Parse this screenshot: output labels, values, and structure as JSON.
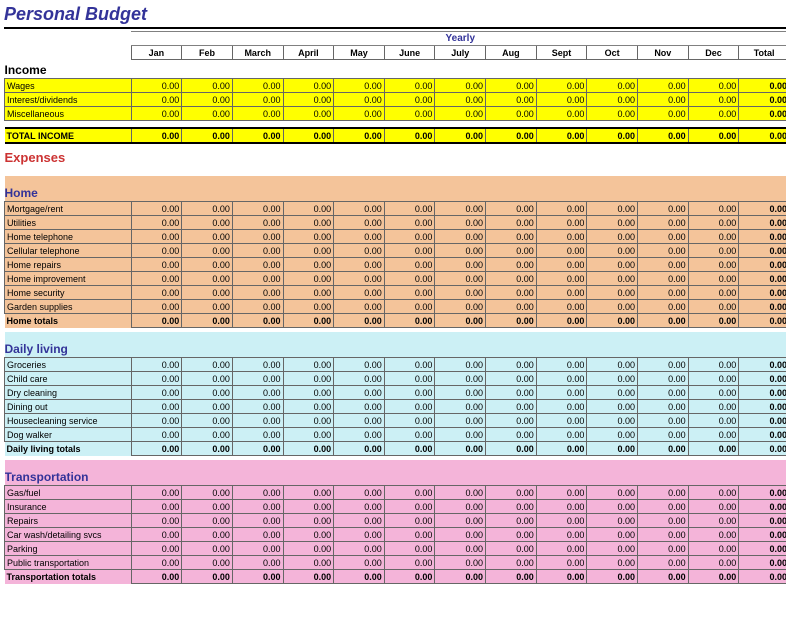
{
  "title": "Personal Budget",
  "headers": {
    "yearly": "Yearly",
    "months": [
      "Jan",
      "Feb",
      "March",
      "April",
      "May",
      "June",
      "July",
      "Aug",
      "Sept",
      "Oct",
      "Nov",
      "Dec"
    ],
    "total": "Total"
  },
  "colors": {
    "title": "#333399",
    "expenses_header": "#cc3333",
    "subsection_header": "#333399",
    "bg_yellow": "#ffff00",
    "bg_peach": "#f4c49a",
    "bg_lightblue": "#ccf0f5",
    "bg_pink": "#f4b4d9",
    "border": "#666666"
  },
  "income": {
    "header": "Income",
    "rows": [
      {
        "label": "Wages",
        "values": [
          "0.00",
          "0.00",
          "0.00",
          "0.00",
          "0.00",
          "0.00",
          "0.00",
          "0.00",
          "0.00",
          "0.00",
          "0.00",
          "0.00"
        ],
        "total": "0.00"
      },
      {
        "label": "Interest/dividends",
        "values": [
          "0.00",
          "0.00",
          "0.00",
          "0.00",
          "0.00",
          "0.00",
          "0.00",
          "0.00",
          "0.00",
          "0.00",
          "0.00",
          "0.00"
        ],
        "total": "0.00"
      },
      {
        "label": "Miscellaneous",
        "values": [
          "0.00",
          "0.00",
          "0.00",
          "0.00",
          "0.00",
          "0.00",
          "0.00",
          "0.00",
          "0.00",
          "0.00",
          "0.00",
          "0.00"
        ],
        "total": "0.00"
      }
    ],
    "total": {
      "label": "TOTAL INCOME",
      "values": [
        "0.00",
        "0.00",
        "0.00",
        "0.00",
        "0.00",
        "0.00",
        "0.00",
        "0.00",
        "0.00",
        "0.00",
        "0.00",
        "0.00"
      ],
      "total": "0.00"
    }
  },
  "expenses": {
    "header": "Expenses",
    "sections": [
      {
        "name": "Home",
        "bg": "bg-peach",
        "rows": [
          {
            "label": "Mortgage/rent",
            "values": [
              "0.00",
              "0.00",
              "0.00",
              "0.00",
              "0.00",
              "0.00",
              "0.00",
              "0.00",
              "0.00",
              "0.00",
              "0.00",
              "0.00"
            ],
            "total": "0.00"
          },
          {
            "label": "Utilities",
            "values": [
              "0.00",
              "0.00",
              "0.00",
              "0.00",
              "0.00",
              "0.00",
              "0.00",
              "0.00",
              "0.00",
              "0.00",
              "0.00",
              "0.00"
            ],
            "total": "0.00"
          },
          {
            "label": "Home telephone",
            "values": [
              "0.00",
              "0.00",
              "0.00",
              "0.00",
              "0.00",
              "0.00",
              "0.00",
              "0.00",
              "0.00",
              "0.00",
              "0.00",
              "0.00"
            ],
            "total": "0.00"
          },
          {
            "label": "Cellular telephone",
            "values": [
              "0.00",
              "0.00",
              "0.00",
              "0.00",
              "0.00",
              "0.00",
              "0.00",
              "0.00",
              "0.00",
              "0.00",
              "0.00",
              "0.00"
            ],
            "total": "0.00"
          },
          {
            "label": "Home repairs",
            "values": [
              "0.00",
              "0.00",
              "0.00",
              "0.00",
              "0.00",
              "0.00",
              "0.00",
              "0.00",
              "0.00",
              "0.00",
              "0.00",
              "0.00"
            ],
            "total": "0.00"
          },
          {
            "label": "Home improvement",
            "values": [
              "0.00",
              "0.00",
              "0.00",
              "0.00",
              "0.00",
              "0.00",
              "0.00",
              "0.00",
              "0.00",
              "0.00",
              "0.00",
              "0.00"
            ],
            "total": "0.00"
          },
          {
            "label": "Home security",
            "values": [
              "0.00",
              "0.00",
              "0.00",
              "0.00",
              "0.00",
              "0.00",
              "0.00",
              "0.00",
              "0.00",
              "0.00",
              "0.00",
              "0.00"
            ],
            "total": "0.00"
          },
          {
            "label": "Garden supplies",
            "values": [
              "0.00",
              "0.00",
              "0.00",
              "0.00",
              "0.00",
              "0.00",
              "0.00",
              "0.00",
              "0.00",
              "0.00",
              "0.00",
              "0.00"
            ],
            "total": "0.00"
          }
        ],
        "total": {
          "label": "Home totals",
          "values": [
            "0.00",
            "0.00",
            "0.00",
            "0.00",
            "0.00",
            "0.00",
            "0.00",
            "0.00",
            "0.00",
            "0.00",
            "0.00",
            "0.00"
          ],
          "total": "0.00"
        }
      },
      {
        "name": "Daily living",
        "bg": "bg-lightblue",
        "rows": [
          {
            "label": "Groceries",
            "values": [
              "0.00",
              "0.00",
              "0.00",
              "0.00",
              "0.00",
              "0.00",
              "0.00",
              "0.00",
              "0.00",
              "0.00",
              "0.00",
              "0.00"
            ],
            "total": "0.00"
          },
          {
            "label": "Child care",
            "values": [
              "0.00",
              "0.00",
              "0.00",
              "0.00",
              "0.00",
              "0.00",
              "0.00",
              "0.00",
              "0.00",
              "0.00",
              "0.00",
              "0.00"
            ],
            "total": "0.00"
          },
          {
            "label": "Dry cleaning",
            "values": [
              "0.00",
              "0.00",
              "0.00",
              "0.00",
              "0.00",
              "0.00",
              "0.00",
              "0.00",
              "0.00",
              "0.00",
              "0.00",
              "0.00"
            ],
            "total": "0.00"
          },
          {
            "label": "Dining out",
            "values": [
              "0.00",
              "0.00",
              "0.00",
              "0.00",
              "0.00",
              "0.00",
              "0.00",
              "0.00",
              "0.00",
              "0.00",
              "0.00",
              "0.00"
            ],
            "total": "0.00"
          },
          {
            "label": "Housecleaning service",
            "values": [
              "0.00",
              "0.00",
              "0.00",
              "0.00",
              "0.00",
              "0.00",
              "0.00",
              "0.00",
              "0.00",
              "0.00",
              "0.00",
              "0.00"
            ],
            "total": "0.00"
          },
          {
            "label": "Dog walker",
            "values": [
              "0.00",
              "0.00",
              "0.00",
              "0.00",
              "0.00",
              "0.00",
              "0.00",
              "0.00",
              "0.00",
              "0.00",
              "0.00",
              "0.00"
            ],
            "total": "0.00"
          }
        ],
        "total": {
          "label": "Daily living totals",
          "values": [
            "0.00",
            "0.00",
            "0.00",
            "0.00",
            "0.00",
            "0.00",
            "0.00",
            "0.00",
            "0.00",
            "0.00",
            "0.00",
            "0.00"
          ],
          "total": "0.00"
        }
      },
      {
        "name": "Transportation",
        "bg": "bg-pink",
        "rows": [
          {
            "label": "Gas/fuel",
            "values": [
              "0.00",
              "0.00",
              "0.00",
              "0.00",
              "0.00",
              "0.00",
              "0.00",
              "0.00",
              "0.00",
              "0.00",
              "0.00",
              "0.00"
            ],
            "total": "0.00"
          },
          {
            "label": "Insurance",
            "values": [
              "0.00",
              "0.00",
              "0.00",
              "0.00",
              "0.00",
              "0.00",
              "0.00",
              "0.00",
              "0.00",
              "0.00",
              "0.00",
              "0.00"
            ],
            "total": "0.00"
          },
          {
            "label": "Repairs",
            "values": [
              "0.00",
              "0.00",
              "0.00",
              "0.00",
              "0.00",
              "0.00",
              "0.00",
              "0.00",
              "0.00",
              "0.00",
              "0.00",
              "0.00"
            ],
            "total": "0.00"
          },
          {
            "label": "Car wash/detailing svcs",
            "values": [
              "0.00",
              "0.00",
              "0.00",
              "0.00",
              "0.00",
              "0.00",
              "0.00",
              "0.00",
              "0.00",
              "0.00",
              "0.00",
              "0.00"
            ],
            "total": "0.00"
          },
          {
            "label": "Parking",
            "values": [
              "0.00",
              "0.00",
              "0.00",
              "0.00",
              "0.00",
              "0.00",
              "0.00",
              "0.00",
              "0.00",
              "0.00",
              "0.00",
              "0.00"
            ],
            "total": "0.00"
          },
          {
            "label": "Public transportation",
            "values": [
              "0.00",
              "0.00",
              "0.00",
              "0.00",
              "0.00",
              "0.00",
              "0.00",
              "0.00",
              "0.00",
              "0.00",
              "0.00",
              "0.00"
            ],
            "total": "0.00"
          }
        ],
        "total": {
          "label": "Transportation totals",
          "values": [
            "0.00",
            "0.00",
            "0.00",
            "0.00",
            "0.00",
            "0.00",
            "0.00",
            "0.00",
            "0.00",
            "0.00",
            "0.00",
            "0.00"
          ],
          "total": "0.00"
        }
      }
    ]
  }
}
